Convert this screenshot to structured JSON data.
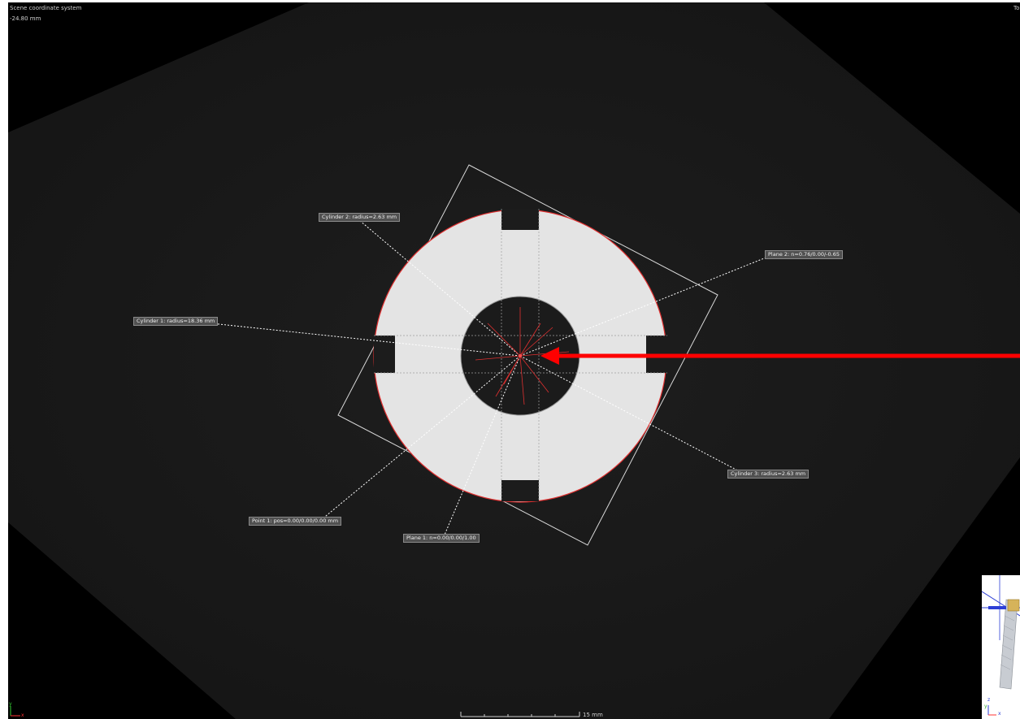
{
  "window": {
    "overlay_title": "Scene coordinate system",
    "slice_position": "-24.80 mm",
    "right_corner_text": "To"
  },
  "scale_bar": {
    "label": "15 mm"
  },
  "labels": {
    "cylinder2": "Cylinder 2: radius=2.63 mm",
    "plane2": "Plane 2: n=0.76/0.00/-0.65",
    "cylinder1": "Cylinder 1: radius=18.36 mm",
    "cylinder3": "Cylinder 3: radius=2.63 mm",
    "point1": "Point 1: pos=0.00/0.00/0.00 mm",
    "plane1": "Plane 1: n=0.00/0.00/1.00"
  },
  "axes": {
    "y": "y",
    "x": "x",
    "z": "z"
  },
  "colors": {
    "background": "#000000",
    "ring_fill": "#e6e6e6",
    "fit_outline": "#e03030",
    "arrow": "#ff0000",
    "label_bg": "#505050",
    "axis_y": "#33cc33",
    "axis_x": "#ff3333",
    "navigator_axis": "#2d3fd6"
  },
  "icons": [
    "axis-triad-icon",
    "navigator-axis-icon",
    "pointer-arrow-icon"
  ]
}
